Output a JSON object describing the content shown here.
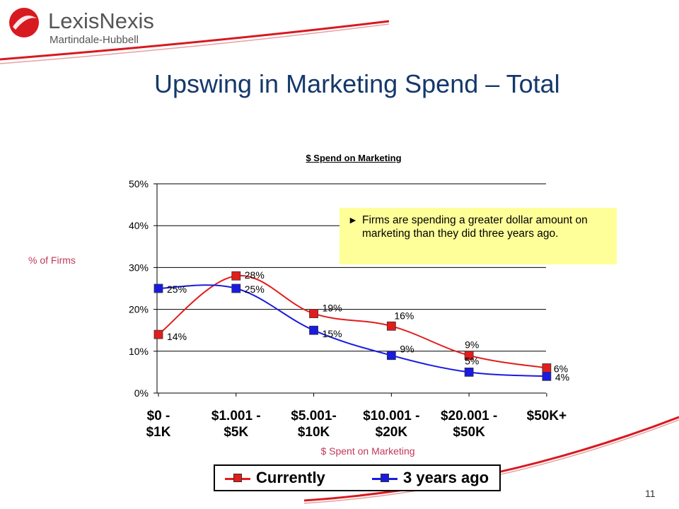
{
  "header": {
    "logo_main": "LexisNexis",
    "logo_sub": "Martindale-Hubbell"
  },
  "slide": {
    "title": "Upswing in Marketing Spend – Total",
    "page_number": "11"
  },
  "callout": {
    "arrow": "►",
    "text": "Firms are spending a greater dollar amount on marketing than they did three years ago."
  },
  "legend": {
    "currently": "Currently",
    "three_years_ago": "3 years ago"
  },
  "colors": {
    "currently": "#e31c1c",
    "three_years_ago": "#1a1ae0",
    "title": "#14386b",
    "axis_label": "#c0395a"
  },
  "chart_data": {
    "type": "line",
    "title": "$ Spend on Marketing",
    "xlabel": "$ Spent on Marketing",
    "ylabel": "% of Firms",
    "categories": [
      "$0 - $1K",
      "$1.001 - $5K",
      "$5.001- $10K",
      "$10.001 - $20K",
      "$20.001 - $50K",
      "$50K+"
    ],
    "ylim": [
      0,
      50
    ],
    "yticks": [
      "0%",
      "10%",
      "20%",
      "30%",
      "40%",
      "50%"
    ],
    "grid": true,
    "legend_position": "bottom",
    "series": [
      {
        "name": "Currently",
        "values": [
          14,
          28,
          19,
          16,
          9,
          6
        ],
        "labels": [
          "14%",
          "28%",
          "19%",
          "16%",
          "9%",
          "6%"
        ]
      },
      {
        "name": "3 years ago",
        "values": [
          25,
          25,
          15,
          9,
          5,
          4
        ],
        "labels": [
          "25%",
          "25%",
          "15%",
          "9%",
          "5%",
          "4%"
        ]
      }
    ]
  }
}
